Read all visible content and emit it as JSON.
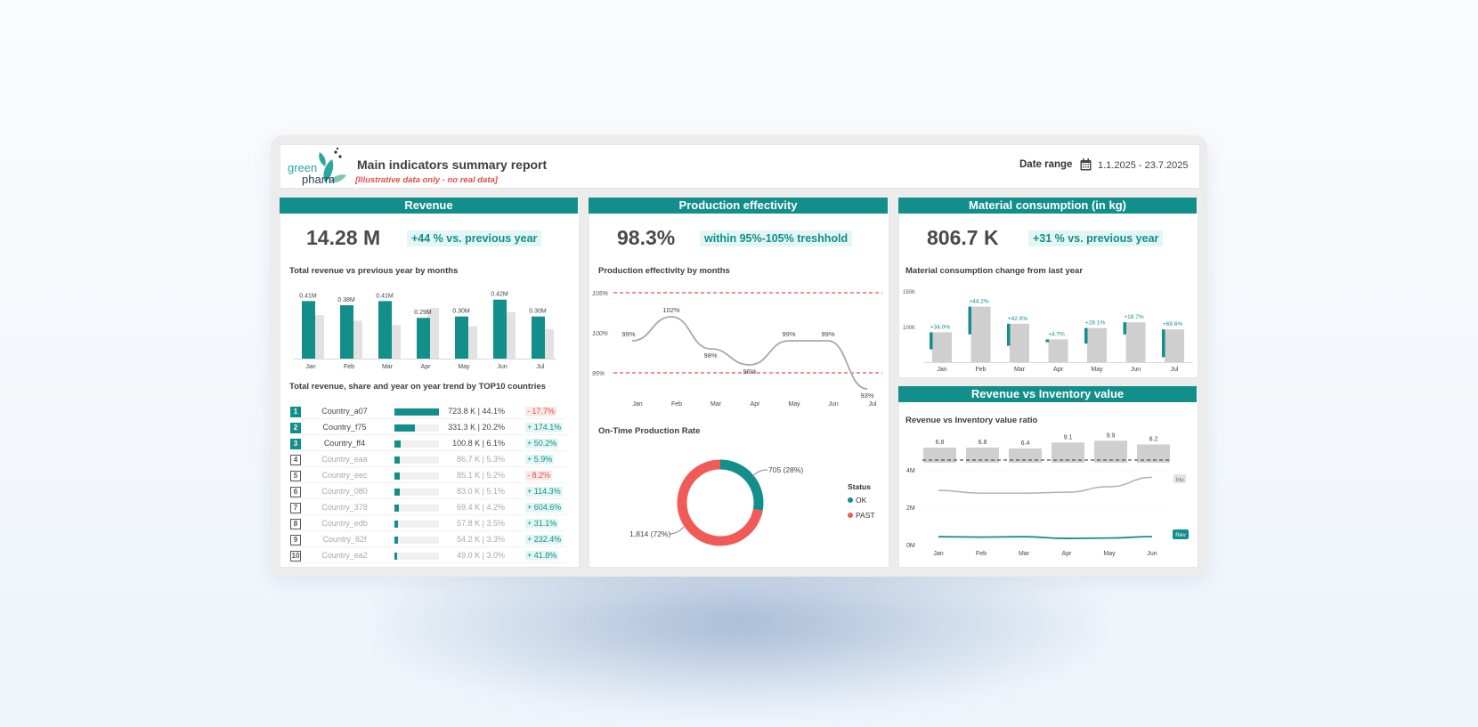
{
  "header": {
    "logo_line1": "green",
    "logo_line2": "pharm",
    "title": "Main indicators summary report",
    "subtitle": "[Illustrative data only - no real data]",
    "date_label": "Date range",
    "date_value": "1.1.2025 - 23.7.2025"
  },
  "colors": {
    "teal": "#128f8b",
    "red": "#e0504a",
    "grey": "#d0d0d0",
    "badge_bg": "#e3f6f4"
  },
  "revenue": {
    "section_title": "Revenue",
    "kpi": "14.28 M",
    "kpi_badge": "+44 % vs. previous year",
    "chart_title": "Total revenue vs previous year by months",
    "countries_title": "Total revenue, share and year on year trend by TOP10 countries"
  },
  "production": {
    "section_title": "Production effectivity",
    "kpi": "98.3%",
    "kpi_badge": "within 95%-105% treshhold",
    "chart_title": "Production effectivity by months",
    "donut_title": "On-Time Production Rate",
    "legend_title": "Status",
    "legend_ok": "OK",
    "legend_past": "PAST",
    "label_ok": "705 (28%)",
    "label_past": "1,814 (72%)"
  },
  "material": {
    "section_title": "Material consumption (in kg)",
    "kpi": "806.7 K",
    "kpi_badge": "+31 % vs. previous year",
    "chart_title": "Material consumption change from last year"
  },
  "inventory": {
    "section_title": "Revenue vs Inventory value",
    "chart_title": "Revenue vs Inventory value ratio",
    "tag_inv": "Inv",
    "tag_rev": "Rev"
  },
  "chart_data": [
    {
      "id": "revenue_monthly",
      "type": "bar",
      "categories": [
        "Jan",
        "Feb",
        "Mar",
        "Apr",
        "May",
        "Jun",
        "Jul"
      ],
      "series": [
        {
          "values": [
            0.41,
            0.38,
            0.41,
            0.29,
            0.3,
            0.42,
            0.3
          ],
          "labels": [
            "0.41M",
            "0.38M",
            "0.41M",
            "0.29M",
            "0.30M",
            "0.42M",
            "0.30M"
          ]
        },
        {
          "values": [
            0.31,
            0.27,
            0.24,
            0.36,
            0.23,
            0.33,
            0.21
          ]
        }
      ],
      "ylim": [
        0,
        0.45
      ]
    },
    {
      "id": "production_effectivity",
      "type": "line",
      "categories": [
        "Jan",
        "Feb",
        "Mar",
        "Apr",
        "May",
        "Jun",
        "Jul"
      ],
      "values": [
        99,
        102,
        98,
        96,
        99,
        99,
        93
      ],
      "labels": [
        "99%",
        "102%",
        "98%",
        "96%",
        "99%",
        "99%",
        "93%"
      ],
      "thresholds": [
        105,
        95
      ],
      "ytick_labels": [
        "105%",
        "100%",
        "95%"
      ],
      "ylim": [
        92,
        106
      ]
    },
    {
      "id": "on_time_rate",
      "type": "pie",
      "categories": [
        "OK",
        "PAST"
      ],
      "values": [
        705,
        1814
      ]
    },
    {
      "id": "material_change",
      "type": "bar",
      "categories": [
        "Jan",
        "Feb",
        "Mar",
        "Apr",
        "May",
        "Jun",
        "Jul"
      ],
      "values": [
        92,
        128,
        104,
        82,
        98,
        106,
        96
      ],
      "previous": [
        68,
        89,
        73,
        78,
        76,
        89,
        57
      ],
      "change_labels": [
        "+34.0%",
        "+44.2%",
        "+42.9%",
        "+4.7%",
        "+28.1%",
        "+18.7%",
        "+69.6%"
      ],
      "ytick_labels": [
        "150K",
        "100K"
      ],
      "ylim": [
        50,
        150
      ]
    },
    {
      "id": "revenue_vs_inventory",
      "type": "line",
      "categories": [
        "Jan",
        "Feb",
        "Mar",
        "Apr",
        "May",
        "Jun"
      ],
      "ratio_values": [
        6.8,
        6.8,
        6.4,
        9.1,
        9.9,
        8.2
      ],
      "ratio_labels": [
        "6.8",
        "6.8",
        "6.4",
        "9.1",
        "9.9",
        "8.2"
      ],
      "series": [
        {
          "name": "Inv",
          "values": [
            2.9,
            2.75,
            2.75,
            2.8,
            3.1,
            3.6
          ]
        },
        {
          "name": "Rev",
          "values": [
            0.42,
            0.4,
            0.42,
            0.33,
            0.35,
            0.43
          ]
        }
      ],
      "ytick_labels": [
        "4M",
        "2M",
        "0M"
      ],
      "ylim": [
        0,
        4
      ]
    }
  ],
  "countries": [
    {
      "rank": "1",
      "name": "Country_a07",
      "share": 1.0,
      "value": "723.8 K | 44.1%",
      "trend": "- 17.7%",
      "positive": false
    },
    {
      "rank": "2",
      "name": "Country_f75",
      "share": 0.46,
      "value": "331.3 K | 20.2%",
      "trend": "+ 174.1%",
      "positive": true
    },
    {
      "rank": "3",
      "name": "Country_ff4",
      "share": 0.14,
      "value": "100.8 K | 6.1%",
      "trend": "+ 50.2%",
      "positive": true
    },
    {
      "rank": "4",
      "name": "Country_eaa",
      "share": 0.12,
      "value": "86.7 K | 5.3%",
      "trend": "+ 5.9%",
      "positive": true
    },
    {
      "rank": "5",
      "name": "Country_eec",
      "share": 0.12,
      "value": "85.1 K | 5.2%",
      "trend": "- 8.2%",
      "positive": false
    },
    {
      "rank": "6",
      "name": "Country_080",
      "share": 0.115,
      "value": "83.0 K | 5.1%",
      "trend": "+ 114.3%",
      "positive": true
    },
    {
      "rank": "7",
      "name": "Country_378",
      "share": 0.095,
      "value": "69.4 K | 4.2%",
      "trend": "+ 604.6%",
      "positive": true
    },
    {
      "rank": "8",
      "name": "Country_edb",
      "share": 0.08,
      "value": "57.8 K | 3.5%",
      "trend": "+ 31.1%",
      "positive": true
    },
    {
      "rank": "9",
      "name": "Country_82f",
      "share": 0.075,
      "value": "54.2 K | 3.3%",
      "trend": "+ 232.4%",
      "positive": true
    },
    {
      "rank": "10",
      "name": "Country_ea2",
      "share": 0.068,
      "value": "49.0 K | 3.0%",
      "trend": "+ 41.8%",
      "positive": true
    }
  ]
}
